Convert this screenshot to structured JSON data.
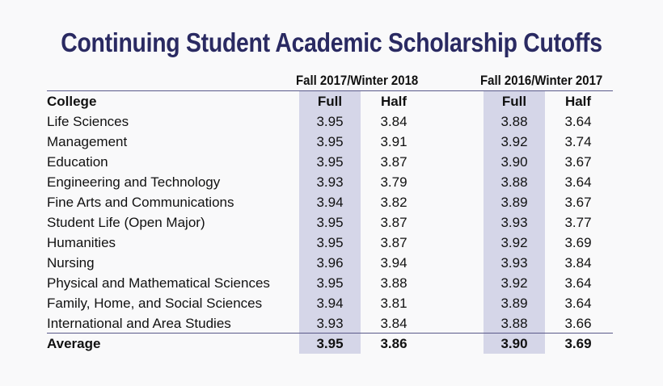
{
  "title": "Continuing Student Academic Scholarship Cutoffs",
  "colors": {
    "title": "#2a2a62",
    "shade": "#d5d6e8",
    "rule": "#5a5a8a"
  },
  "groups": [
    "Fall 2017/Winter 2018",
    "Fall 2016/Winter 2017"
  ],
  "header": {
    "college": "College",
    "full": "Full",
    "half": "Half"
  },
  "rows": [
    {
      "college": "Life Sciences",
      "full1": "3.95",
      "half1": "3.84",
      "full2": "3.88",
      "half2": "3.64"
    },
    {
      "college": "Management",
      "full1": "3.95",
      "half1": "3.91",
      "full2": "3.92",
      "half2": "3.74"
    },
    {
      "college": "Education",
      "full1": "3.95",
      "half1": "3.87",
      "full2": "3.90",
      "half2": "3.67"
    },
    {
      "college": "Engineering and Technology",
      "full1": "3.93",
      "half1": "3.79",
      "full2": "3.88",
      "half2": "3.64"
    },
    {
      "college": "Fine Arts and Communications",
      "full1": "3.94",
      "half1": "3.82",
      "full2": "3.89",
      "half2": "3.67"
    },
    {
      "college": "Student Life (Open Major)",
      "full1": "3.95",
      "half1": "3.87",
      "full2": "3.93",
      "half2": "3.77"
    },
    {
      "college": "Humanities",
      "full1": "3.95",
      "half1": "3.87",
      "full2": "3.92",
      "half2": "3.69"
    },
    {
      "college": "Nursing",
      "full1": "3.96",
      "half1": "3.94",
      "full2": "3.93",
      "half2": "3.84"
    },
    {
      "college": "Physical and Mathematical Sciences",
      "full1": "3.95",
      "half1": "3.88",
      "full2": "3.92",
      "half2": "3.64"
    },
    {
      "college": "Family, Home, and Social Sciences",
      "full1": "3.94",
      "half1": "3.81",
      "full2": "3.89",
      "half2": "3.64"
    },
    {
      "college": "International and Area Studies",
      "full1": "3.93",
      "half1": "3.84",
      "full2": "3.88",
      "half2": "3.66"
    }
  ],
  "average": {
    "college": "Average",
    "full1": "3.95",
    "half1": "3.86",
    "full2": "3.90",
    "half2": "3.69"
  }
}
